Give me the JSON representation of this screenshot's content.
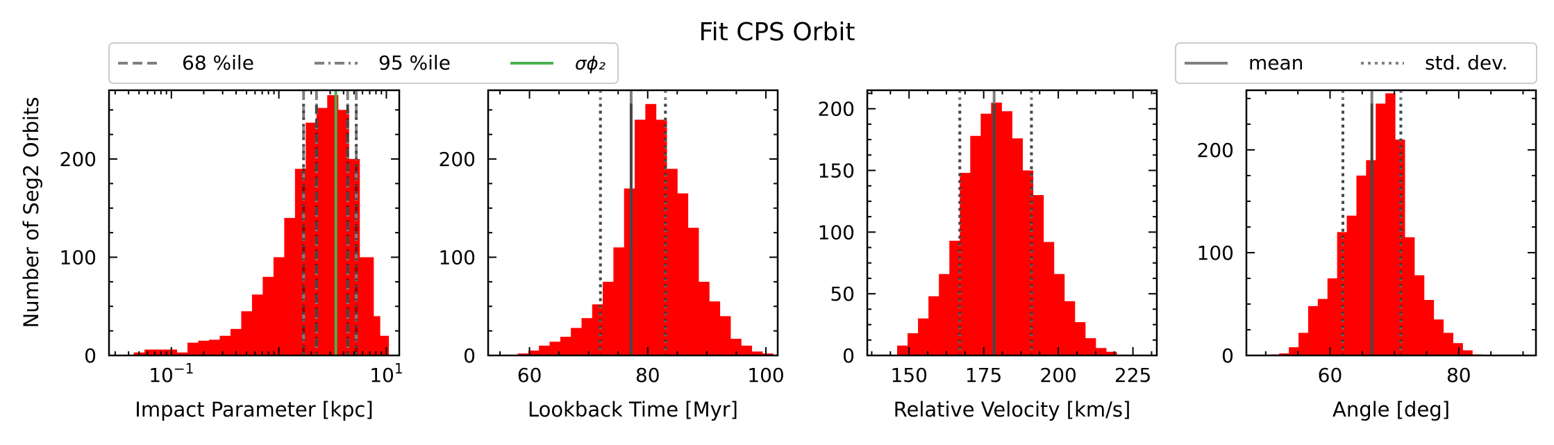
{
  "title": "Fit CPS Orbit",
  "colors": {
    "bar": "#ff0000",
    "ref_line": "#808080",
    "sigma_line": "#4caf50",
    "dark_line": "#000000"
  },
  "legend_left": {
    "placement": "above-first-panel",
    "entries": [
      {
        "label": "68 %ile",
        "style": "dashed",
        "color": "#808080"
      },
      {
        "label": "95 %ile",
        "style": "dashdot",
        "color": "#808080"
      },
      {
        "label": "σϕ₂",
        "style": "solid",
        "color": "#4caf50"
      }
    ]
  },
  "legend_right": {
    "placement": "above-last-panel",
    "entries": [
      {
        "label": "mean",
        "style": "solid",
        "color": "#808080"
      },
      {
        "label": "std. dev.",
        "style": "dotted",
        "color": "#808080"
      }
    ]
  },
  "chart_data": [
    {
      "type": "bar",
      "name": "impact-parameter",
      "xlabel": "Impact Parameter [kpc]",
      "ylabel": "Number of Seg2 Orbits",
      "xscale": "log",
      "xlim_log10": [
        -1.58,
        1.12
      ],
      "ylim": [
        0,
        270
      ],
      "xticks": [
        {
          "v": -1,
          "label": "10",
          "exp": "−1"
        },
        {
          "v": 1,
          "label": "10",
          "exp": "1"
        }
      ],
      "yticks": [
        0,
        100,
        200
      ],
      "bin_edges_log10": [
        -1.35,
        -1.23,
        -1.11,
        -0.99,
        -0.87,
        -0.75,
        -0.63,
        -0.51,
        -0.39,
        -0.27,
        -0.15,
        -0.03,
        0.09,
        0.21,
        0.33,
        0.45,
        0.57,
        0.69,
        0.81,
        0.93,
        1.05
      ],
      "counts": [
        3,
        6,
        6,
        6,
        3,
        13,
        15,
        16,
        20,
        27,
        45,
        62,
        80,
        100,
        140,
        190,
        237,
        252,
        265,
        250,
        200,
        100,
        100,
        40,
        20
      ],
      "bins_edges_override": [
        -1.35,
        -1.25,
        -1.15,
        -1.05,
        -0.95,
        -0.85,
        -0.75,
        -0.65,
        -0.55,
        -0.45,
        -0.35,
        -0.25,
        -0.15,
        -0.05,
        0.05,
        0.15,
        0.25,
        0.35,
        0.45,
        0.55,
        0.65,
        0.75,
        0.81,
        0.88,
        0.94,
        1.02
      ],
      "lines": [
        {
          "x": 0.35,
          "style": "dashed",
          "color": "#808080"
        },
        {
          "x": 0.64,
          "style": "dashed",
          "color": "#808080"
        },
        {
          "x": 0.23,
          "style": "dashdot",
          "color": "#808080"
        },
        {
          "x": 0.72,
          "style": "dashdot",
          "color": "#808080"
        },
        {
          "x": 0.53,
          "style": "solid",
          "color": "#4caf50"
        }
      ]
    },
    {
      "type": "bar",
      "name": "lookback-time",
      "xlabel": "Lookback Time [Myr]",
      "ylabel": "",
      "xlim": [
        53,
        102
      ],
      "ylim": [
        0,
        270
      ],
      "xticks": [
        {
          "v": 60,
          "label": "60"
        },
        {
          "v": 80,
          "label": "80"
        },
        {
          "v": 100,
          "label": "100"
        }
      ],
      "yticks": [
        0,
        100,
        200
      ],
      "bin_start": 58,
      "bin_width": 1.8,
      "counts": [
        2,
        5,
        10,
        14,
        19,
        28,
        38,
        52,
        75,
        110,
        170,
        240,
        256,
        240,
        190,
        165,
        130,
        75,
        55,
        40,
        17,
        10,
        4,
        2
      ],
      "lines": [
        {
          "x": 72,
          "style": "dotted",
          "color": "#808080"
        },
        {
          "x": 77.2,
          "style": "solid",
          "color": "#808080"
        },
        {
          "x": 83,
          "style": "dotted",
          "color": "#808080"
        }
      ]
    },
    {
      "type": "bar",
      "name": "relative-velocity",
      "xlabel": "Relative Velocity [km/s]",
      "ylabel": "",
      "xlim": [
        136,
        233
      ],
      "ylim": [
        0,
        215
      ],
      "xticks": [
        {
          "v": 150,
          "label": "150"
        },
        {
          "v": 175,
          "label": "175"
        },
        {
          "v": 200,
          "label": "200"
        },
        {
          "v": 225,
          "label": "225"
        }
      ],
      "yticks": [
        0,
        50,
        100,
        150,
        200
      ],
      "bin_start": 146,
      "bin_width": 3.5,
      "counts": [
        8,
        18,
        30,
        48,
        66,
        93,
        148,
        178,
        196,
        205,
        198,
        176,
        150,
        130,
        92,
        66,
        44,
        27,
        14,
        6,
        3
      ],
      "lines": [
        {
          "x": 167,
          "style": "dotted",
          "color": "#808080"
        },
        {
          "x": 178.5,
          "style": "solid",
          "color": "#808080"
        },
        {
          "x": 191,
          "style": "dotted",
          "color": "#808080"
        }
      ]
    },
    {
      "type": "bar",
      "name": "angle",
      "xlabel": "Angle [deg]",
      "ylabel": "",
      "xlim": [
        47,
        92
      ],
      "ylim": [
        0,
        258
      ],
      "xticks": [
        {
          "v": 60,
          "label": "60"
        },
        {
          "v": 80,
          "label": "80"
        }
      ],
      "yticks": [
        0,
        100,
        200
      ],
      "bin_start": 50.6,
      "bin_width": 1.5,
      "counts": [
        1,
        2,
        8,
        22,
        48,
        55,
        75,
        120,
        136,
        175,
        190,
        245,
        255,
        210,
        115,
        78,
        54,
        35,
        22,
        12,
        5,
        1
      ],
      "lines": [
        {
          "x": 62,
          "style": "dotted",
          "color": "#808080"
        },
        {
          "x": 66.5,
          "style": "solid",
          "color": "#808080"
        },
        {
          "x": 71,
          "style": "dotted",
          "color": "#808080"
        }
      ]
    }
  ]
}
